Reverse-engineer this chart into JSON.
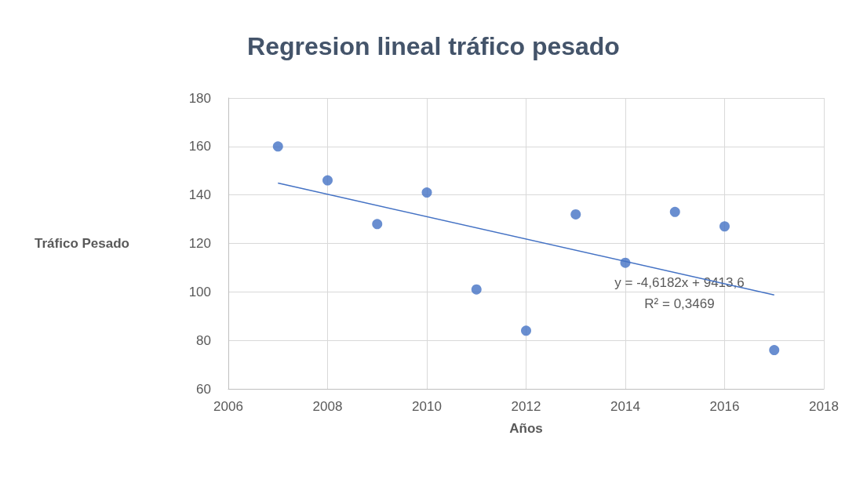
{
  "chart_data": {
    "type": "scatter",
    "title": "Regresion lineal tráfico pesado",
    "xlabel": "Años",
    "ylabel": "Tráfico Pesado",
    "series": [
      {
        "color": "#4472c4",
        "marker": "circle",
        "x": [
          2007,
          2008,
          2009,
          2010,
          2011,
          2012,
          2013,
          2014,
          2015,
          2016,
          2017
        ],
        "values": [
          160,
          146,
          128,
          141,
          101,
          84,
          132,
          112,
          133,
          127,
          76
        ]
      },
      {
        "type": "line",
        "color": "#4472c4",
        "x": [
          2007,
          2017
        ],
        "values": [
          144.9,
          98.7
        ]
      }
    ],
    "xlim": [
      2006,
      2018
    ],
    "xticks": [
      2006,
      2008,
      2010,
      2012,
      2014,
      2016,
      2018
    ],
    "ylim": [
      60,
      180
    ],
    "yticks": [
      60,
      80,
      100,
      120,
      140,
      160,
      180
    ],
    "grid": true,
    "annotations": [
      "y = -4,6182x + 9413,6",
      "R² = 0,3469"
    ]
  }
}
